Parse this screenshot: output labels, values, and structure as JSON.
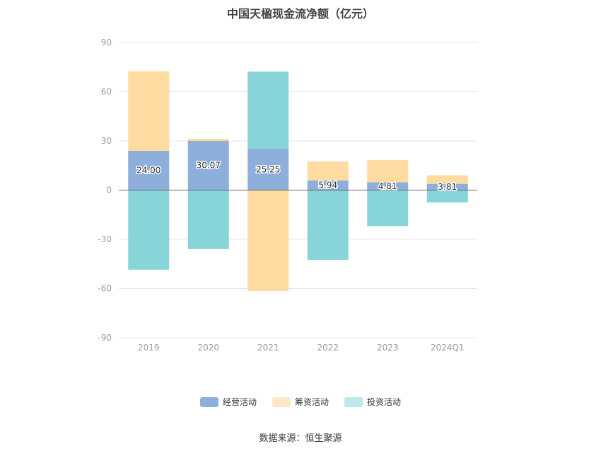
{
  "chart_data": {
    "type": "bar",
    "stacked": true,
    "title": "中国天楹现金流净额（亿元）",
    "categories": [
      "2019",
      "2020",
      "2021",
      "2022",
      "2023",
      "2024Q1"
    ],
    "series": [
      {
        "name": "经营活动",
        "color": "#8eaedc",
        "values": [
          24.0,
          30.07,
          25.25,
          5.94,
          4.81,
          3.81
        ]
      },
      {
        "name": "筹资活动",
        "color": "#fedba0",
        "values": [
          48.5,
          1.2,
          -61.5,
          11.5,
          13.5,
          5.2
        ]
      },
      {
        "name": "投资活动",
        "color": "#88d5d9",
        "values": [
          -48.5,
          -36.0,
          47.0,
          -42.5,
          -22.0,
          -7.5
        ]
      }
    ],
    "data_labels_series": "经营活动",
    "data_labels": [
      "24.00",
      "30.07",
      "25.25",
      "5.94",
      "4.81",
      "3.81"
    ],
    "ylim": [
      -90,
      90
    ],
    "yticks": [
      90,
      60,
      30,
      0,
      -30,
      -60,
      -90
    ],
    "grid": true,
    "legend_position": "bottom"
  },
  "source": "数据来源：恒生聚源"
}
